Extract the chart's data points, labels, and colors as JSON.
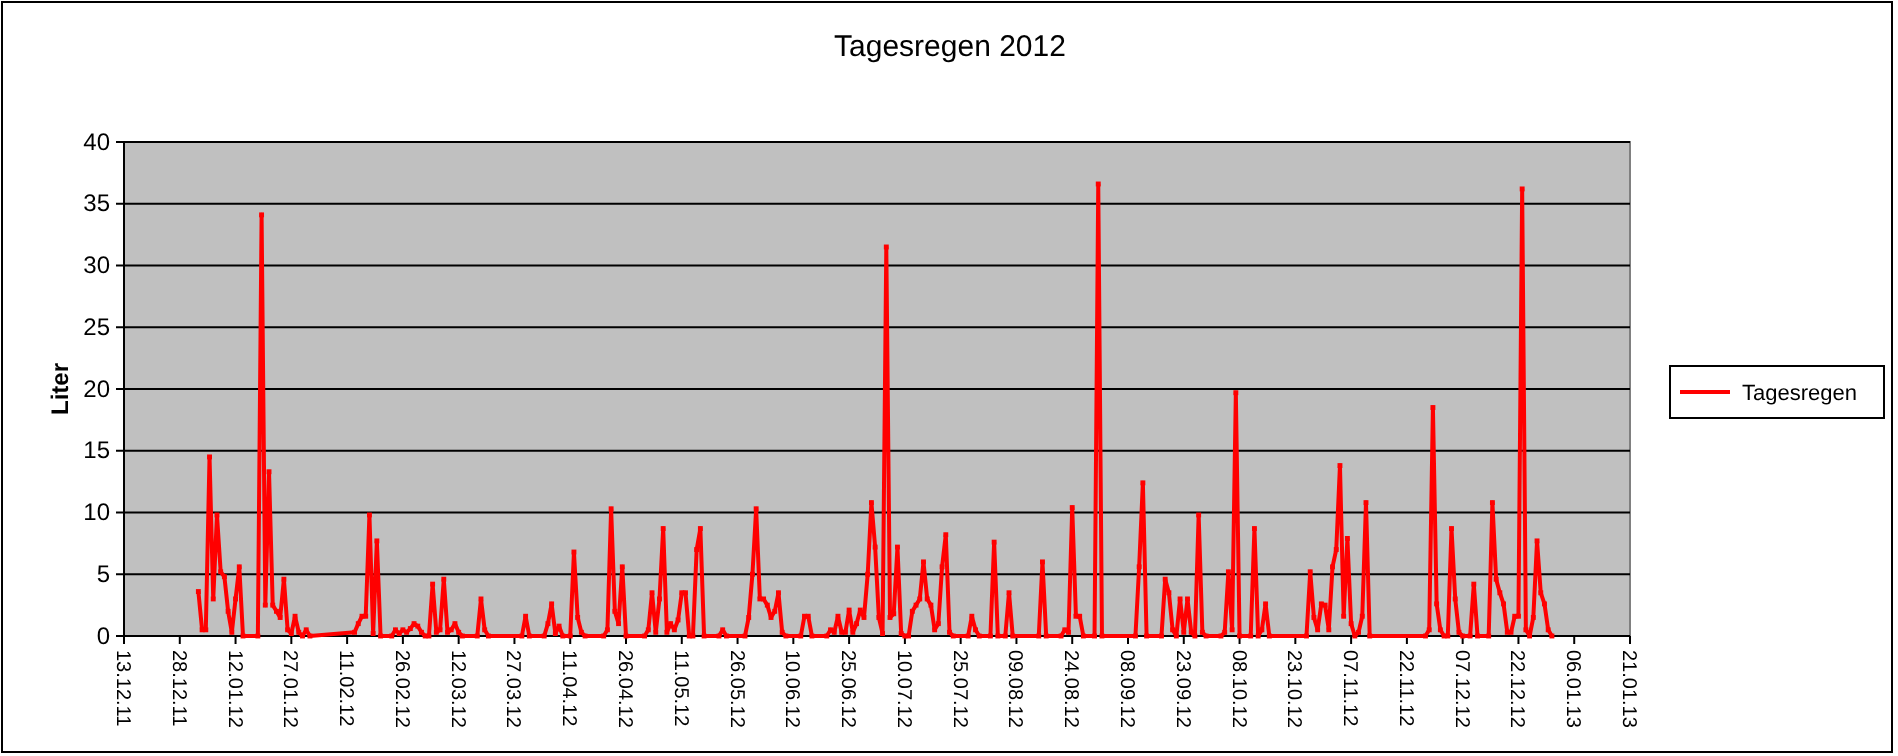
{
  "chart_data": {
    "type": "line",
    "title": "Tagesregen 2012",
    "ylabel": "Liter",
    "xlim": [
      "2011-12-13",
      "2013-01-21"
    ],
    "xticks": [
      {
        "value": "2011-12-13",
        "label": "13.12.11"
      },
      {
        "value": "2011-12-28",
        "label": "28.12.11"
      },
      {
        "value": "2012-01-12",
        "label": "12.01.12"
      },
      {
        "value": "2012-01-27",
        "label": "27.01.12"
      },
      {
        "value": "2012-02-11",
        "label": "11.02.12"
      },
      {
        "value": "2012-02-26",
        "label": "26.02.12"
      },
      {
        "value": "2012-03-12",
        "label": "12.03.12"
      },
      {
        "value": "2012-03-27",
        "label": "27.03.12"
      },
      {
        "value": "2012-04-11",
        "label": "11.04.12"
      },
      {
        "value": "2012-04-26",
        "label": "26.04.12"
      },
      {
        "value": "2012-05-11",
        "label": "11.05.12"
      },
      {
        "value": "2012-05-26",
        "label": "26.05.12"
      },
      {
        "value": "2012-06-10",
        "label": "10.06.12"
      },
      {
        "value": "2012-06-25",
        "label": "25.06.12"
      },
      {
        "value": "2012-07-10",
        "label": "10.07.12"
      },
      {
        "value": "2012-07-25",
        "label": "25.07.12"
      },
      {
        "value": "2012-08-09",
        "label": "09.08.12"
      },
      {
        "value": "2012-08-24",
        "label": "24.08.12"
      },
      {
        "value": "2012-09-08",
        "label": "08.09.12"
      },
      {
        "value": "2012-09-23",
        "label": "23.09.12"
      },
      {
        "value": "2012-10-08",
        "label": "08.10.12"
      },
      {
        "value": "2012-10-23",
        "label": "23.10.12"
      },
      {
        "value": "2012-11-07",
        "label": "07.11.12"
      },
      {
        "value": "2012-11-22",
        "label": "22.11.12"
      },
      {
        "value": "2012-12-07",
        "label": "07.12.12"
      },
      {
        "value": "2012-12-22",
        "label": "22.12.12"
      },
      {
        "value": "2013-01-06",
        "label": "06.01.13"
      },
      {
        "value": "2013-01-21",
        "label": "21.01.13"
      }
    ],
    "ylim": [
      0,
      40
    ],
    "yticks": [
      0,
      5,
      10,
      15,
      20,
      25,
      30,
      35,
      40
    ],
    "grid": "y",
    "legend": "right",
    "marker": "square",
    "line_style": "solid",
    "x": [
      "2012-01-02",
      "2012-01-03",
      "2012-01-04",
      "2012-01-05",
      "2012-01-06",
      "2012-01-07",
      "2012-01-08",
      "2012-01-09",
      "2012-01-10",
      "2012-01-11",
      "2012-01-12",
      "2012-01-13",
      "2012-01-14",
      "2012-01-18",
      "2012-01-19",
      "2012-01-20",
      "2012-01-21",
      "2012-01-22",
      "2012-01-23",
      "2012-01-24",
      "2012-01-25",
      "2012-01-26",
      "2012-01-27",
      "2012-01-28",
      "2012-01-29",
      "2012-01-30",
      "2012-01-31",
      "2012-02-01",
      "2012-02-13",
      "2012-02-14",
      "2012-02-15",
      "2012-02-16",
      "2012-02-17",
      "2012-02-18",
      "2012-02-19",
      "2012-02-20",
      "2012-02-23",
      "2012-02-24",
      "2012-02-25",
      "2012-02-26",
      "2012-02-27",
      "2012-02-28",
      "2012-02-29",
      "2012-03-01",
      "2012-03-02",
      "2012-03-03",
      "2012-03-04",
      "2012-03-05",
      "2012-03-06",
      "2012-03-07",
      "2012-03-08",
      "2012-03-09",
      "2012-03-10",
      "2012-03-11",
      "2012-03-12",
      "2012-03-13",
      "2012-03-17",
      "2012-03-18",
      "2012-03-19",
      "2012-03-20",
      "2012-03-29",
      "2012-03-30",
      "2012-03-31",
      "2012-04-04",
      "2012-04-05",
      "2012-04-06",
      "2012-04-07",
      "2012-04-08",
      "2012-04-09",
      "2012-04-11",
      "2012-04-12",
      "2012-04-13",
      "2012-04-14",
      "2012-04-15",
      "2012-04-20",
      "2012-04-21",
      "2012-04-22",
      "2012-04-23",
      "2012-04-24",
      "2012-04-25",
      "2012-04-26",
      "2012-05-01",
      "2012-05-02",
      "2012-05-03",
      "2012-05-04",
      "2012-05-05",
      "2012-05-06",
      "2012-05-07",
      "2012-05-08",
      "2012-05-09",
      "2012-05-10",
      "2012-05-11",
      "2012-05-12",
      "2012-05-13",
      "2012-05-14",
      "2012-05-15",
      "2012-05-16",
      "2012-05-17",
      "2012-05-21",
      "2012-05-22",
      "2012-05-23",
      "2012-05-28",
      "2012-05-29",
      "2012-05-30",
      "2012-05-31",
      "2012-06-01",
      "2012-06-02",
      "2012-06-03",
      "2012-06-04",
      "2012-06-05",
      "2012-06-06",
      "2012-06-07",
      "2012-06-08",
      "2012-06-12",
      "2012-06-13",
      "2012-06-14",
      "2012-06-15",
      "2012-06-19",
      "2012-06-20",
      "2012-06-21",
      "2012-06-22",
      "2012-06-23",
      "2012-06-24",
      "2012-06-25",
      "2012-06-26",
      "2012-06-27",
      "2012-06-28",
      "2012-06-29",
      "2012-06-30",
      "2012-07-01",
      "2012-07-02",
      "2012-07-03",
      "2012-07-04",
      "2012-07-05",
      "2012-07-06",
      "2012-07-07",
      "2012-07-08",
      "2012-07-09",
      "2012-07-10",
      "2012-07-11",
      "2012-07-12",
      "2012-07-13",
      "2012-07-14",
      "2012-07-15",
      "2012-07-16",
      "2012-07-17",
      "2012-07-18",
      "2012-07-19",
      "2012-07-20",
      "2012-07-21",
      "2012-07-22",
      "2012-07-23",
      "2012-07-27",
      "2012-07-28",
      "2012-07-29",
      "2012-07-30",
      "2012-08-02",
      "2012-08-03",
      "2012-08-04",
      "2012-08-06",
      "2012-08-07",
      "2012-08-08",
      "2012-08-15",
      "2012-08-16",
      "2012-08-17",
      "2012-08-21",
      "2012-08-22",
      "2012-08-23",
      "2012-08-24",
      "2012-08-25",
      "2012-08-26",
      "2012-08-27",
      "2012-08-30",
      "2012-08-31",
      "2012-09-01",
      "2012-09-10",
      "2012-09-11",
      "2012-09-12",
      "2012-09-13",
      "2012-09-17",
      "2012-09-18",
      "2012-09-19",
      "2012-09-20",
      "2012-09-21",
      "2012-09-22",
      "2012-09-23",
      "2012-09-24",
      "2012-09-25",
      "2012-09-26",
      "2012-09-27",
      "2012-09-28",
      "2012-09-29",
      "2012-10-03",
      "2012-10-04",
      "2012-10-05",
      "2012-10-06",
      "2012-10-07",
      "2012-10-08",
      "2012-10-11",
      "2012-10-12",
      "2012-10-13",
      "2012-10-14",
      "2012-10-15",
      "2012-10-16",
      "2012-10-26",
      "2012-10-27",
      "2012-10-28",
      "2012-10-29",
      "2012-10-30",
      "2012-10-31",
      "2012-11-01",
      "2012-11-02",
      "2012-11-03",
      "2012-11-04",
      "2012-11-05",
      "2012-11-06",
      "2012-11-07",
      "2012-11-08",
      "2012-11-09",
      "2012-11-10",
      "2012-11-11",
      "2012-11-12",
      "2012-11-27",
      "2012-11-28",
      "2012-11-29",
      "2012-11-30",
      "2012-12-01",
      "2012-12-02",
      "2012-12-03",
      "2012-12-04",
      "2012-12-05",
      "2012-12-06",
      "2012-12-07",
      "2012-12-09",
      "2012-12-10",
      "2012-12-11",
      "2012-12-14",
      "2012-12-15",
      "2012-12-16",
      "2012-12-17",
      "2012-12-18",
      "2012-12-19",
      "2012-12-20",
      "2012-12-21",
      "2012-12-22",
      "2012-12-23",
      "2012-12-24",
      "2012-12-25",
      "2012-12-26",
      "2012-12-27",
      "2012-12-28",
      "2012-12-29",
      "2012-12-30",
      "2012-12-31"
    ],
    "series": [
      {
        "name": "Tagesregen",
        "color": "#ff0000",
        "values": [
          3.6,
          0.5,
          0.5,
          14.5,
          3.0,
          9.8,
          5.2,
          4.8,
          2.0,
          0.3,
          3.0,
          5.6,
          0,
          0,
          34.1,
          2.5,
          13.3,
          2.5,
          2.0,
          1.5,
          4.6,
          0.5,
          0.2,
          1.6,
          0.3,
          0,
          0.5,
          0,
          0.3,
          1.0,
          1.6,
          1.6,
          9.8,
          0.2,
          7.7,
          0,
          0,
          0.5,
          0.2,
          0.5,
          0.3,
          0.6,
          1.0,
          0.8,
          0.3,
          0,
          0,
          4.2,
          0.3,
          0.5,
          4.6,
          0.3,
          0.5,
          1.0,
          0.3,
          0,
          0,
          3.0,
          0.5,
          0,
          0,
          1.6,
          0,
          0,
          1.0,
          2.6,
          0.2,
          0.8,
          0,
          0,
          6.8,
          1.5,
          0.3,
          0,
          0,
          0.5,
          10.3,
          2.0,
          1.0,
          5.6,
          0,
          0,
          0.5,
          3.5,
          0.3,
          3.0,
          8.7,
          0.3,
          1.0,
          0.5,
          1.3,
          3.5,
          3.5,
          0,
          0,
          7.0,
          8.7,
          0,
          0,
          0.5,
          0,
          0,
          1.5,
          5.0,
          10.3,
          3.0,
          3.0,
          2.5,
          1.5,
          2.0,
          3.5,
          0.3,
          0,
          0,
          1.6,
          1.6,
          0,
          0,
          0.5,
          0.3,
          1.6,
          0.3,
          0.3,
          2.1,
          0.3,
          1.0,
          2.1,
          1.5,
          5.0,
          10.8,
          7.2,
          1.5,
          0.2,
          31.5,
          1.5,
          1.8,
          7.2,
          0.2,
          0,
          0,
          2.0,
          2.5,
          3.0,
          6.0,
          3.0,
          2.5,
          0.5,
          1.0,
          5.6,
          8.2,
          0.3,
          0,
          0,
          1.6,
          0.5,
          0,
          0,
          7.6,
          0,
          0,
          3.5,
          0,
          0,
          6.0,
          0,
          0,
          0.5,
          0.3,
          10.4,
          1.6,
          1.6,
          0,
          0,
          36.6,
          0,
          0,
          5.6,
          12.4,
          0,
          0,
          4.6,
          3.5,
          0.5,
          0,
          3.0,
          0.3,
          3.0,
          0.3,
          0,
          9.8,
          0.3,
          0,
          0,
          0.3,
          5.2,
          0.5,
          19.7,
          0,
          0,
          8.7,
          0,
          0.5,
          2.6,
          0,
          0,
          5.2,
          1.5,
          0.5,
          2.6,
          2.5,
          0.5,
          5.6,
          7.0,
          13.8,
          1.6,
          7.9,
          1.0,
          0,
          0.3,
          1.6,
          10.8,
          0,
          0,
          0.5,
          18.5,
          2.6,
          0.5,
          0,
          0,
          8.7,
          3.0,
          0.3,
          0,
          0,
          4.2,
          0,
          0,
          10.8,
          4.6,
          3.5,
          2.6,
          0.3,
          0.3,
          1.6,
          1.6,
          36.2,
          0.5,
          0,
          1.5,
          7.7,
          3.5,
          2.6,
          0.5,
          0
        ]
      }
    ]
  }
}
